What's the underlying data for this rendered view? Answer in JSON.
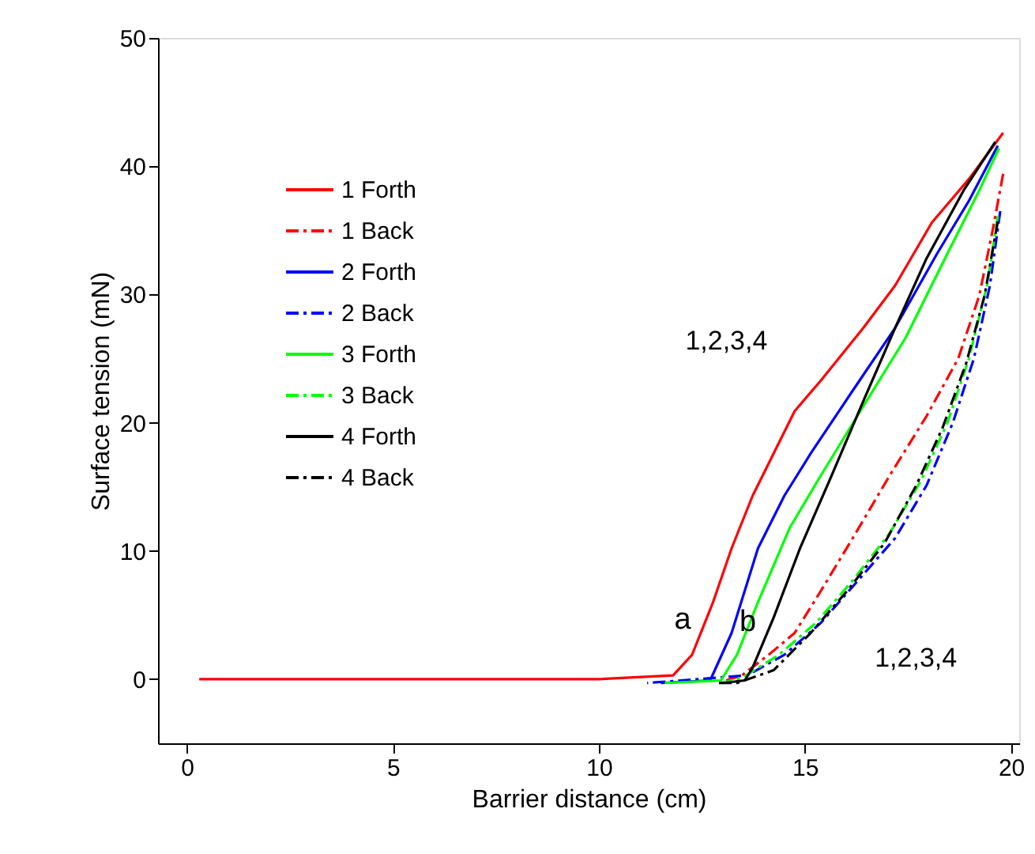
{
  "chart_data": {
    "type": "line",
    "xlabel": "Barrier distance (cm)",
    "ylabel": "Surface tension (mN)",
    "xlim": [
      -0.7,
      20.2
    ],
    "ylim": [
      -5,
      50
    ],
    "xticks": [
      0,
      5,
      10,
      15,
      20
    ],
    "yticks": [
      0,
      10,
      20,
      30,
      40,
      50
    ],
    "grid": false,
    "legend": "top left",
    "marker": "none",
    "series": [
      {
        "name": "1 Forth",
        "color": "#ff0000",
        "line_style": "solid",
        "x": [
          0.3,
          2,
          4,
          6,
          8,
          10,
          11.8,
          12.26,
          12.77,
          13.22,
          13.73,
          14.24,
          14.75,
          15.39,
          16.42,
          17.19,
          18.08,
          18.98,
          19.81
        ],
        "values": [
          0,
          0,
          0,
          0,
          0,
          0,
          0.3,
          1.9,
          6.0,
          10.2,
          14.3,
          17.6,
          20.9,
          23.3,
          27.4,
          30.7,
          35.6,
          39.0,
          42.6
        ]
      },
      {
        "name": "1 Back",
        "color": "#ff0000",
        "line_style": "dashed",
        "x": [
          19.81,
          19.55,
          19.23,
          18.72,
          17.95,
          17.06,
          16.16,
          15.39,
          14.75,
          14.12,
          13.47,
          13.09
        ],
        "values": [
          39.4,
          34.9,
          29.9,
          25.0,
          20.5,
          15.9,
          11.0,
          6.9,
          3.6,
          1.9,
          0.3,
          -0.1
        ]
      },
      {
        "name": "2 Forth",
        "color": "#0000ff",
        "line_style": "solid",
        "x": [
          11.5,
          12.7,
          13.22,
          13.86,
          14.5,
          15.14,
          16.16,
          17.19,
          18.21,
          18.98,
          19.68
        ],
        "values": [
          -0.3,
          -0.1,
          3.6,
          10.2,
          14.3,
          17.6,
          22.5,
          27.4,
          33.2,
          37.3,
          41.6
        ]
      },
      {
        "name": "2 Back",
        "color": "#0000ff",
        "line_style": "dashed",
        "x": [
          19.74,
          19.49,
          19.1,
          18.59,
          17.95,
          17.19,
          16.29,
          15.39,
          14.5,
          13.6,
          11.17
        ],
        "values": [
          36.5,
          30.7,
          25.0,
          20.0,
          15.1,
          11.0,
          7.7,
          4.4,
          1.9,
          0.3,
          -0.3
        ]
      },
      {
        "name": "3 Forth",
        "color": "#00ff00",
        "line_style": "solid",
        "x": [
          11.6,
          12.96,
          13.35,
          13.86,
          14.63,
          15.39,
          16.42,
          17.44,
          18.46,
          19.23,
          19.71
        ],
        "values": [
          -0.3,
          -0.1,
          1.9,
          6.0,
          11.8,
          15.9,
          21.3,
          26.6,
          33.2,
          38.1,
          41.4
        ]
      },
      {
        "name": "3 Back",
        "color": "#00ff00",
        "line_style": "dashed",
        "x": [
          19.68,
          19.42,
          18.98,
          18.46,
          17.82,
          17.06,
          16.16,
          15.27,
          14.37,
          13.47,
          12.96
        ],
        "values": [
          36.1,
          30.7,
          25.0,
          20.0,
          15.5,
          11.4,
          7.7,
          4.4,
          1.9,
          0.1,
          -0.3
        ]
      },
      {
        "name": "4 Forth",
        "color": "#000000",
        "line_style": "solid",
        "x": [
          13.0,
          13.54,
          13.73,
          14.24,
          14.88,
          15.65,
          16.42,
          17.19,
          17.95,
          18.85,
          19.62
        ],
        "values": [
          -0.3,
          -0.1,
          0.9,
          4.8,
          10.2,
          15.9,
          21.7,
          27.4,
          32.8,
          38.1,
          41.9
        ]
      },
      {
        "name": "4 Back",
        "color": "#000000",
        "line_style": "dashed",
        "x": [
          19.68,
          19.36,
          18.91,
          18.34,
          17.7,
          16.93,
          16.03,
          15.14,
          14.24,
          13.35,
          12.83
        ],
        "values": [
          35.7,
          29.9,
          24.6,
          19.6,
          15.1,
          10.6,
          6.9,
          3.6,
          0.7,
          -0.3,
          -0.3
        ]
      }
    ],
    "annotations": [
      {
        "text": "a",
        "x": 12.39,
        "y": 3.2
      },
      {
        "text": "b",
        "x": 13.97,
        "y": 3.0
      },
      "1,2,3,4",
      "1,2,3,4"
    ]
  }
}
